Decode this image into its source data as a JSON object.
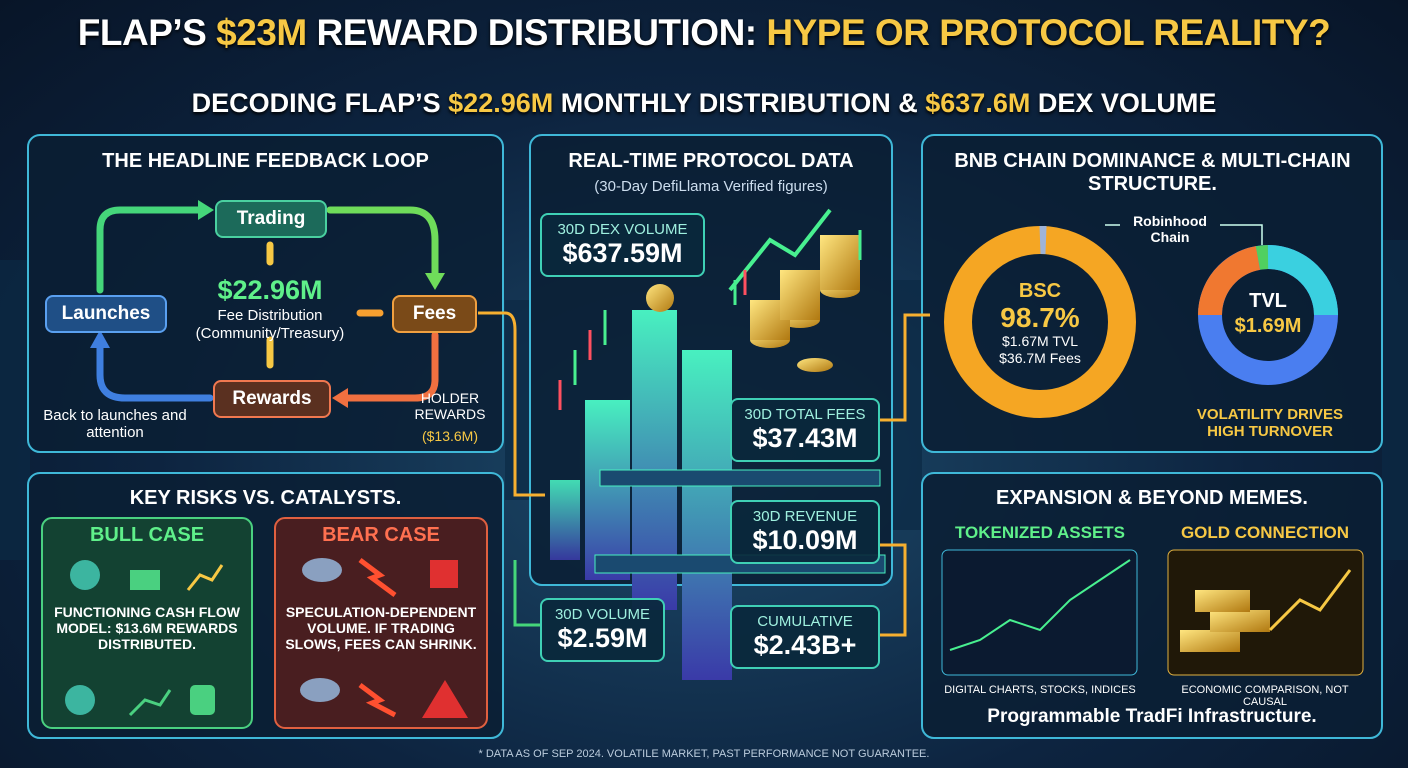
{
  "header": {
    "title_parts": [
      "FLAP’S ",
      "$23M",
      " REWARD DISTRIBUTION: ",
      "HYPE OR PROTOCOL REALITY?"
    ],
    "subtitle_parts": [
      "DECODING FLAP’S ",
      "$22.96M",
      " MONTHLY DISTRIBUTION & ",
      "$637.6M",
      " DEX VOLUME"
    ]
  },
  "feedback_loop": {
    "title": "THE HEADLINE FEEDBACK LOOP",
    "nodes": {
      "trading": "Trading",
      "launches": "Launches",
      "fees": "Fees",
      "rewards": "Rewards"
    },
    "center_value": "$22.96M",
    "center_label": "Fee Distribution",
    "center_sub": "(Community/Treasury)",
    "back_note": "Back to launches and attention",
    "holder_label": "HOLDER REWARDS",
    "holder_value": "($13.6M)"
  },
  "protocol_data": {
    "title": "REAL-TIME PROTOCOL DATA",
    "subtitle": "(30-Day DefiLlama Verified figures)",
    "metrics": [
      {
        "label": "30D DEX VOLUME",
        "value": "$637.59M"
      },
      {
        "label": "30D TOTAL FEES",
        "value": "$37.43M"
      },
      {
        "label": "30D REVENUE",
        "value": "$10.09M"
      },
      {
        "label": "30D VOLUME",
        "value": "$2.59M"
      },
      {
        "label": "CUMULATIVE",
        "value": "$2.43B+"
      }
    ]
  },
  "chain": {
    "title": "BNB CHAIN DOMINANCE & MULTI-CHAIN STRUCTURE.",
    "robinhood": "Robinhood Chain",
    "bsc": {
      "label": "BSC",
      "share": "98.7%",
      "tvl": "$1.67M TVL",
      "fees": "$36.7M Fees"
    },
    "tvl": {
      "label": "TVL",
      "value": "$1.69M"
    },
    "note": "VOLATILITY DRIVES HIGH TURNOVER"
  },
  "risks": {
    "title": "KEY RISKS VS. CATALYSTS.",
    "bull": {
      "title": "BULL CASE",
      "text": "FUNCTIONING CASH FLOW MODEL: $13.6M REWARDS DISTRIBUTED."
    },
    "bear": {
      "title": "BEAR CASE",
      "text": "SPECULATION-DEPENDENT VOLUME. IF TRADING SLOWS, FEES CAN SHRINK."
    }
  },
  "expansion": {
    "title": "EXPANSION & BEYOND MEMES.",
    "tokenized": {
      "title": "TOKENIZED ASSETS",
      "caption": "DIGITAL CHARTS, STOCKS, INDICES"
    },
    "gold": {
      "title": "GOLD CONNECTION",
      "caption": "ECONOMIC COMPARISON, NOT CAUSAL"
    },
    "footer": "Programmable TradFi Infrastructure."
  },
  "footnote": "* DATA AS OF SEP 2024. VOLATILE MARKET, PAST PERFORMANCE NOT GUARANTEE."
}
